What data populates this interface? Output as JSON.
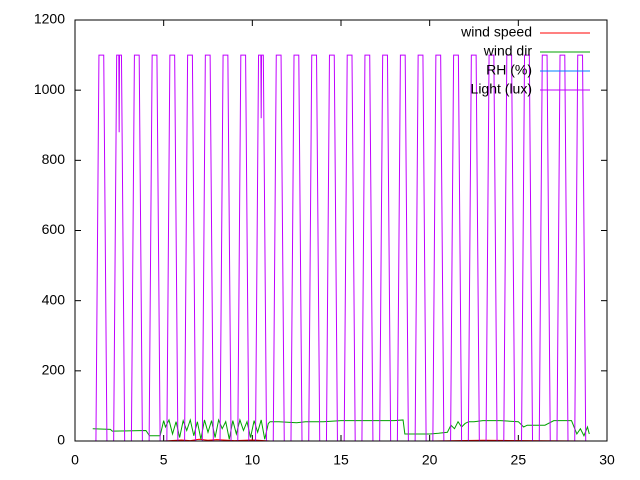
{
  "chart_data": {
    "type": "line",
    "xlim": [
      0,
      30
    ],
    "xticks": [
      0,
      5,
      10,
      15,
      20,
      25,
      30
    ],
    "ylim": [
      0,
      1200
    ],
    "yticks": [
      0,
      200,
      400,
      600,
      800,
      1000,
      1200
    ],
    "legend": "top-right",
    "series": [
      {
        "name": "wind speed",
        "color": "#ff0000",
        "x": [
          1,
          5,
          6,
          6.5,
          7,
          7.5,
          8,
          9,
          10,
          11,
          12,
          20,
          23,
          29
        ],
        "values": [
          0,
          0,
          3,
          1,
          5,
          2,
          4,
          1,
          3,
          0,
          0,
          0,
          2,
          0
        ]
      },
      {
        "name": "wind dir",
        "color": "#00a000",
        "x": [
          1.0,
          2.0,
          2.1,
          4.0,
          4.2,
          4.8,
          5.0,
          5.1,
          5.3,
          5.5,
          5.7,
          5.9,
          6.1,
          6.3,
          6.5,
          6.7,
          6.9,
          7.1,
          7.3,
          7.5,
          7.7,
          7.9,
          8.1,
          8.3,
          8.5,
          8.7,
          8.9,
          9.1,
          9.3,
          9.5,
          9.7,
          9.9,
          10.1,
          10.3,
          10.5,
          10.7,
          10.9,
          11.0,
          11.5,
          12.5,
          13,
          14,
          15,
          16,
          17,
          18,
          18.5,
          18.6,
          20,
          20.5,
          21,
          21.2,
          21.4,
          21.6,
          21.8,
          22,
          22.2,
          22.5,
          23,
          24,
          25,
          25.3,
          25.5,
          26.5,
          27,
          28,
          28.3,
          28.5,
          28.7,
          28.9,
          29
        ],
        "values": [
          35,
          33,
          28,
          30,
          15,
          15,
          58,
          40,
          60,
          20,
          55,
          10,
          58,
          30,
          60,
          15,
          55,
          5,
          60,
          25,
          58,
          10,
          60,
          35,
          55,
          5,
          58,
          20,
          60,
          30,
          55,
          10,
          58,
          25,
          60,
          5,
          50,
          55,
          55,
          52,
          55,
          55,
          58,
          58,
          58,
          58,
          60,
          20,
          20,
          22,
          25,
          45,
          35,
          55,
          40,
          50,
          55,
          55,
          58,
          58,
          55,
          40,
          45,
          45,
          58,
          58,
          20,
          35,
          15,
          40,
          20
        ]
      },
      {
        "name": "RH (%)",
        "color": "#0080ff",
        "x": [
          1,
          29
        ],
        "values": [
          0,
          0
        ]
      },
      {
        "name": "Light (lux)",
        "color": "#c000ff",
        "x": [
          1.18,
          1.35,
          1.62,
          1.8,
          2.18,
          2.35,
          2.47,
          2.49,
          2.51,
          2.62,
          2.8,
          3.18,
          3.35,
          3.62,
          3.8,
          4.18,
          4.35,
          4.62,
          4.8,
          5.18,
          5.35,
          5.62,
          5.8,
          6.18,
          6.35,
          6.62,
          6.8,
          7.18,
          7.35,
          7.62,
          7.8,
          8.18,
          8.35,
          8.62,
          8.8,
          9.18,
          9.35,
          9.62,
          9.8,
          10.18,
          10.35,
          10.48,
          10.5,
          10.52,
          10.62,
          10.8,
          11.18,
          11.35,
          11.62,
          11.8,
          12.18,
          12.35,
          12.62,
          12.8,
          13.18,
          13.35,
          13.62,
          13.8,
          14.18,
          14.35,
          14.62,
          14.8,
          15.18,
          15.35,
          15.62,
          15.8,
          16.18,
          16.35,
          16.62,
          16.8,
          17.18,
          17.35,
          17.62,
          17.8,
          18.18,
          18.35,
          18.62,
          18.8,
          19.18,
          19.35,
          19.62,
          19.8,
          20.18,
          20.35,
          20.62,
          20.8,
          21.18,
          21.35,
          21.62,
          21.8,
          22.18,
          22.35,
          22.62,
          22.8,
          23.18,
          23.35,
          23.62,
          23.8,
          24.18,
          24.35,
          24.62,
          24.8,
          25.18,
          25.35,
          25.62,
          25.8,
          26.18,
          26.35,
          26.62,
          26.8,
          27.18,
          27.35,
          27.62,
          27.8,
          28.18,
          28.35,
          28.62,
          28.8
        ],
        "values": [
          0,
          1100,
          1100,
          0,
          0,
          1100,
          1100,
          880,
          1100,
          1100,
          0,
          0,
          1100,
          1100,
          0,
          0,
          1100,
          1100,
          0,
          0,
          1100,
          1100,
          0,
          0,
          1100,
          1100,
          0,
          0,
          1100,
          1100,
          0,
          0,
          1100,
          1100,
          0,
          0,
          1100,
          1100,
          0,
          0,
          1100,
          1100,
          920,
          1100,
          1100,
          0,
          0,
          1100,
          1100,
          0,
          0,
          1100,
          1100,
          0,
          0,
          1100,
          1100,
          0,
          0,
          1100,
          1100,
          0,
          0,
          1100,
          1100,
          0,
          0,
          1100,
          1100,
          0,
          0,
          1100,
          1100,
          0,
          0,
          1100,
          1100,
          0,
          0,
          1100,
          1100,
          0,
          0,
          1100,
          1100,
          0,
          0,
          1100,
          1100,
          0,
          0,
          1100,
          1100,
          0,
          0,
          1100,
          1100,
          0,
          0,
          1100,
          1100,
          0,
          0,
          1100,
          1100,
          0,
          0,
          1100,
          1100,
          0,
          0,
          1100,
          1100,
          0,
          0,
          1100,
          1100,
          0
        ]
      }
    ]
  }
}
